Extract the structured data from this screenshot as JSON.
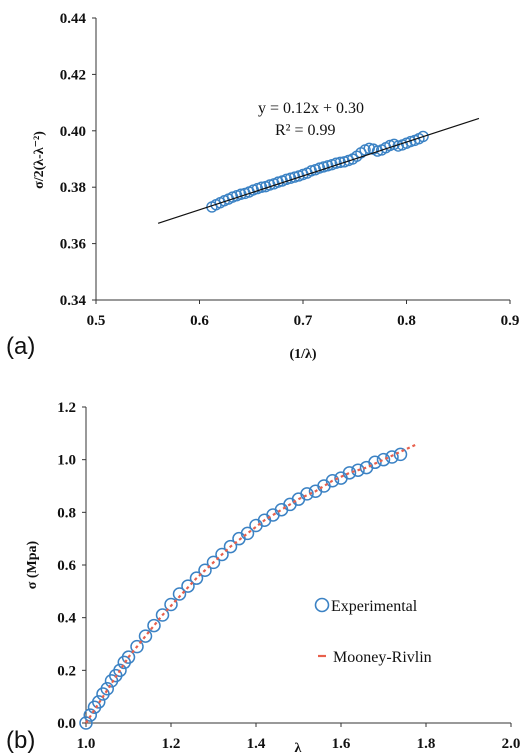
{
  "chart_data": [
    {
      "type": "scatter",
      "panel_label": "(a)",
      "title": "",
      "xlabel": "(1/λ)",
      "ylabel": "σ/2(λ-λ⁻²)",
      "xlim": [
        0.5,
        0.9
      ],
      "ylim": [
        0.34,
        0.44
      ],
      "xticks": [
        "0.5",
        "0.6",
        "0.7",
        "0.8",
        "0.9"
      ],
      "yticks": [
        "0.34",
        "0.36",
        "0.38",
        "0.40",
        "0.42",
        "0.44"
      ],
      "grid": false,
      "series": [
        {
          "marker": "open-circle",
          "color": "#3b82c4",
          "x": [
            0.612,
            0.616,
            0.62,
            0.624,
            0.628,
            0.632,
            0.636,
            0.64,
            0.644,
            0.648,
            0.652,
            0.656,
            0.66,
            0.664,
            0.668,
            0.672,
            0.676,
            0.68,
            0.684,
            0.688,
            0.692,
            0.696,
            0.7,
            0.704,
            0.708,
            0.712,
            0.716,
            0.72,
            0.724,
            0.728,
            0.732,
            0.736,
            0.74,
            0.744,
            0.748,
            0.752,
            0.756,
            0.76,
            0.764,
            0.768,
            0.772,
            0.776,
            0.78,
            0.784,
            0.788,
            0.792,
            0.796,
            0.8,
            0.804,
            0.808,
            0.812,
            0.816
          ],
          "y": [
            0.373,
            0.3738,
            0.3745,
            0.3752,
            0.3758,
            0.3765,
            0.377,
            0.3775,
            0.3778,
            0.3783,
            0.379,
            0.3795,
            0.38,
            0.3802,
            0.3808,
            0.3812,
            0.3818,
            0.3822,
            0.3828,
            0.3832,
            0.3836,
            0.384,
            0.3845,
            0.385,
            0.3858,
            0.3862,
            0.3868,
            0.3872,
            0.3876,
            0.388,
            0.3885,
            0.3888,
            0.389,
            0.3895,
            0.39,
            0.391,
            0.3922,
            0.3932,
            0.3938,
            0.3935,
            0.3928,
            0.3932,
            0.394,
            0.3948,
            0.3952,
            0.3946,
            0.395,
            0.3956,
            0.3962,
            0.3966,
            0.3972,
            0.398
          ]
        }
      ],
      "trendline": {
        "slope": 0.12,
        "intercept": 0.3,
        "x_range": [
          0.56,
          0.87
        ],
        "color": "#111111"
      },
      "annotations": [
        "y = 0.12x + 0.30",
        "R² = 0.99"
      ]
    },
    {
      "type": "scatter",
      "panel_label": "(b)",
      "title": "",
      "xlabel": "λ",
      "ylabel": "σ (Mpa)",
      "xlim": [
        1.0,
        2.0
      ],
      "ylim": [
        0.0,
        1.2
      ],
      "xticks": [
        "1.0",
        "1.2",
        "1.4",
        "1.6",
        "1.8",
        "2.0"
      ],
      "yticks": [
        "0.0",
        "0.2",
        "0.4",
        "0.6",
        "0.8",
        "1.0",
        "1.2"
      ],
      "grid": false,
      "legend_position": "center-right",
      "series": [
        {
          "name": "Experimental",
          "marker": "open-circle",
          "color": "#3b82c4",
          "x": [
            1.0,
            1.01,
            1.02,
            1.03,
            1.04,
            1.05,
            1.06,
            1.07,
            1.08,
            1.09,
            1.1,
            1.12,
            1.14,
            1.16,
            1.18,
            1.2,
            1.22,
            1.24,
            1.26,
            1.28,
            1.3,
            1.32,
            1.34,
            1.36,
            1.38,
            1.4,
            1.42,
            1.44,
            1.46,
            1.48,
            1.5,
            1.52,
            1.54,
            1.56,
            1.58,
            1.6,
            1.62,
            1.64,
            1.66,
            1.68,
            1.7,
            1.72,
            1.74
          ],
          "y": [
            0.0,
            0.03,
            0.06,
            0.08,
            0.11,
            0.13,
            0.16,
            0.18,
            0.2,
            0.23,
            0.25,
            0.29,
            0.33,
            0.37,
            0.41,
            0.45,
            0.49,
            0.52,
            0.55,
            0.58,
            0.61,
            0.64,
            0.67,
            0.7,
            0.72,
            0.75,
            0.77,
            0.79,
            0.81,
            0.83,
            0.85,
            0.87,
            0.88,
            0.9,
            0.92,
            0.93,
            0.95,
            0.96,
            0.97,
            0.99,
            1.0,
            1.01,
            1.02
          ]
        },
        {
          "name": "Mooney-Rivlin",
          "marker": "dash-line",
          "color": "#e8604c",
          "x": [
            1.0,
            1.02,
            1.04,
            1.06,
            1.08,
            1.1,
            1.14,
            1.18,
            1.22,
            1.26,
            1.3,
            1.34,
            1.38,
            1.42,
            1.46,
            1.5,
            1.54,
            1.58,
            1.62,
            1.66,
            1.7,
            1.74,
            1.78
          ],
          "y": [
            0.0,
            0.05,
            0.1,
            0.15,
            0.2,
            0.25,
            0.33,
            0.41,
            0.48,
            0.55,
            0.61,
            0.67,
            0.72,
            0.77,
            0.81,
            0.85,
            0.88,
            0.92,
            0.95,
            0.97,
            1.0,
            1.03,
            1.06
          ]
        }
      ]
    }
  ]
}
